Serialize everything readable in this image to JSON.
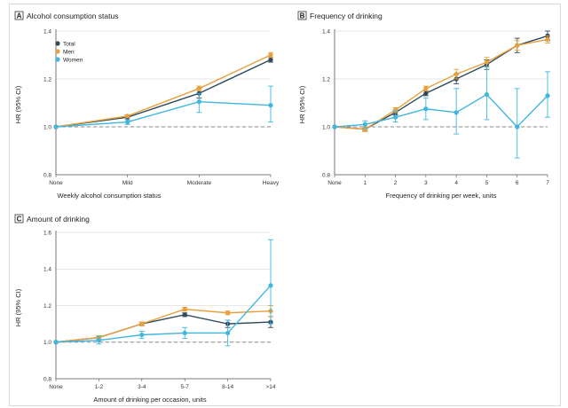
{
  "figure": {
    "colors": {
      "Total": "#2f4a5a",
      "Men": "#e8a03c",
      "Women": "#3fb6e0",
      "reference": "#888888"
    }
  },
  "chart_data": [
    {
      "id": "A",
      "type": "line",
      "letter": "A",
      "title": "Alcohol consumption status",
      "xlabel": "Weekly alcohol consumption status",
      "ylabel": "HR (95% CI)",
      "categories": [
        "None",
        "Mild",
        "Moderate",
        "Heavy"
      ],
      "ylim": [
        0.8,
        1.4
      ],
      "yticks": [
        "0.8",
        "1.0",
        "1.2",
        "1.4"
      ],
      "reference_value": 1.0,
      "legend": {
        "entries": [
          "Total",
          "Men",
          "Women"
        ],
        "placement": "top-left"
      },
      "series": [
        {
          "name": "Total",
          "values": [
            1.0,
            1.04,
            1.14,
            1.28
          ],
          "lower": [
            1.0,
            1.03,
            1.12,
            1.27
          ],
          "upper": [
            1.0,
            1.05,
            1.16,
            1.29
          ]
        },
        {
          "name": "Men",
          "values": [
            1.0,
            1.045,
            1.16,
            1.3
          ],
          "lower": [
            1.0,
            1.04,
            1.15,
            1.29
          ],
          "upper": [
            1.0,
            1.05,
            1.17,
            1.31
          ]
        },
        {
          "name": "Women",
          "values": [
            1.0,
            1.02,
            1.105,
            1.09
          ],
          "lower": [
            1.0,
            1.01,
            1.06,
            1.02
          ],
          "upper": [
            1.0,
            1.03,
            1.14,
            1.17
          ]
        }
      ]
    },
    {
      "id": "B",
      "type": "line",
      "letter": "B",
      "title": "Frequency of drinking",
      "xlabel": "Frequency of drinking per week, units",
      "ylabel": "HR (95% CI)",
      "categories": [
        "None",
        "1",
        "2",
        "3",
        "4",
        "5",
        "6",
        "7"
      ],
      "ylim": [
        0.8,
        1.4
      ],
      "yticks": [
        "0.8",
        "1.0",
        "1.2",
        "1.4"
      ],
      "reference_value": 1.0,
      "series": [
        {
          "name": "Total",
          "values": [
            1.0,
            0.99,
            1.06,
            1.14,
            1.2,
            1.26,
            1.34,
            1.38
          ],
          "lower": [
            1.0,
            0.985,
            1.05,
            1.13,
            1.18,
            1.24,
            1.31,
            1.36
          ],
          "upper": [
            1.0,
            0.995,
            1.07,
            1.15,
            1.22,
            1.28,
            1.37,
            1.4
          ]
        },
        {
          "name": "Men",
          "values": [
            1.0,
            0.99,
            1.07,
            1.16,
            1.22,
            1.27,
            1.34,
            1.365
          ],
          "lower": [
            1.0,
            0.98,
            1.06,
            1.15,
            1.2,
            1.25,
            1.32,
            1.35
          ],
          "upper": [
            1.0,
            1.0,
            1.08,
            1.17,
            1.24,
            1.29,
            1.36,
            1.38
          ]
        },
        {
          "name": "Women",
          "values": [
            1.0,
            1.01,
            1.04,
            1.075,
            1.06,
            1.135,
            1.0,
            1.13
          ],
          "lower": [
            1.0,
            0.995,
            1.02,
            1.03,
            0.97,
            1.03,
            0.87,
            1.04
          ],
          "upper": [
            1.0,
            1.025,
            1.065,
            1.12,
            1.16,
            1.25,
            1.16,
            1.23
          ]
        }
      ]
    },
    {
      "id": "C",
      "type": "line",
      "letter": "C",
      "title": "Amount of drinking",
      "xlabel": "Amount of drinking per occasion, units",
      "ylabel": "HR (95% CI)",
      "categories": [
        "None",
        "1-2",
        "3-4",
        "5-7",
        "8-14",
        ">14"
      ],
      "ylim": [
        0.8,
        1.6
      ],
      "yticks": [
        "0.8",
        "1.0",
        "1.2",
        "1.4",
        "1.6"
      ],
      "reference_value": 1.0,
      "series": [
        {
          "name": "Total",
          "values": [
            1.0,
            1.025,
            1.1,
            1.15,
            1.1,
            1.11
          ],
          "lower": [
            1.0,
            1.015,
            1.09,
            1.14,
            1.08,
            1.08
          ],
          "upper": [
            1.0,
            1.035,
            1.11,
            1.16,
            1.12,
            1.14
          ]
        },
        {
          "name": "Men",
          "values": [
            1.0,
            1.025,
            1.1,
            1.18,
            1.16,
            1.17
          ],
          "lower": [
            1.0,
            1.015,
            1.09,
            1.17,
            1.15,
            1.14
          ],
          "upper": [
            1.0,
            1.035,
            1.11,
            1.19,
            1.17,
            1.2
          ]
        },
        {
          "name": "Women",
          "values": [
            1.0,
            1.01,
            1.04,
            1.05,
            1.05,
            1.31
          ],
          "lower": [
            1.0,
            0.99,
            1.02,
            1.02,
            0.98,
            1.1
          ],
          "upper": [
            1.0,
            1.03,
            1.06,
            1.08,
            1.12,
            1.56
          ]
        }
      ]
    }
  ]
}
